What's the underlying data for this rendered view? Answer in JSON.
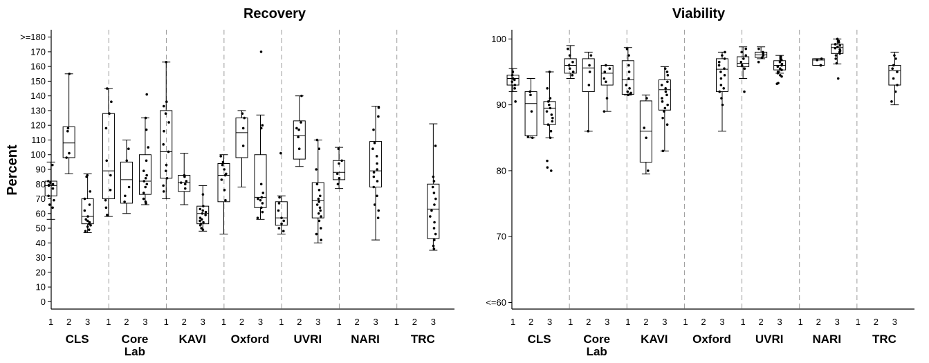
{
  "chart_data": [
    {
      "type": "box",
      "title": "Recovery",
      "ylabel": "Percent",
      "y_ticks": [
        ">=180",
        "170",
        "160",
        "150",
        "140",
        "130",
        "120",
        "110",
        "100",
        "90",
        "80",
        "70",
        "60",
        "50",
        "40",
        "30",
        "20",
        "10",
        "0"
      ],
      "y_tick_values": [
        180,
        170,
        160,
        150,
        140,
        130,
        120,
        110,
        100,
        90,
        80,
        70,
        60,
        50,
        40,
        30,
        20,
        10,
        0
      ],
      "ylim": [
        -5,
        185
      ],
      "x_subcategories": [
        "1",
        "2",
        "3"
      ],
      "groups": [
        {
          "name_lines": [
            "CLS"
          ],
          "boxes": [
            {
              "sub": "1",
              "min": 56,
              "q1": 72,
              "median": 79,
              "q3": 82,
              "max": 95,
              "points": [
                93,
                82,
                81,
                80,
                79,
                77,
                72,
                69,
                66,
                64
              ]
            },
            {
              "sub": "2",
              "min": 87,
              "q1": 98,
              "median": 108,
              "q3": 119,
              "max": 155,
              "points": [
                155,
                118,
                116,
                101,
                98
              ]
            },
            {
              "sub": "3",
              "min": 47,
              "q1": 53,
              "median": 58,
              "q3": 70,
              "max": 87,
              "points": [
                86,
                85,
                75,
                70,
                66,
                62,
                58,
                56,
                55,
                54,
                53,
                52,
                51,
                49,
                48
              ]
            }
          ]
        },
        {
          "name_lines": [
            "Core",
            "Lab"
          ],
          "boxes": [
            {
              "sub": "1",
              "min": 58,
              "q1": 70,
              "median": 89,
              "q3": 128,
              "max": 145,
              "points": [
                145,
                136,
                128,
                118,
                96,
                86,
                76,
                69,
                64,
                59
              ]
            },
            {
              "sub": "2",
              "min": 60,
              "q1": 67,
              "median": 83,
              "q3": 95,
              "max": 110,
              "points": [
                104,
                96,
                78,
                72,
                68
              ]
            },
            {
              "sub": "3",
              "min": 66,
              "q1": 73,
              "median": 82,
              "q3": 100,
              "max": 125,
              "points": [
                141,
                125,
                117,
                105,
                96,
                89,
                86,
                84,
                82,
                80,
                78,
                74,
                70,
                68,
                67
              ]
            }
          ]
        },
        {
          "name_lines": [
            "KAVI"
          ],
          "boxes": [
            {
              "sub": "1",
              "min": 70,
              "q1": 84,
              "median": 102,
              "q3": 130,
              "max": 163,
              "points": [
                163,
                136,
                133,
                128,
                122,
                116,
                107,
                102,
                93,
                89,
                84,
                79,
                75
              ]
            },
            {
              "sub": "2",
              "min": 66,
              "q1": 75,
              "median": 81,
              "q3": 86,
              "max": 101,
              "points": [
                86,
                85,
                82,
                81,
                80,
                77
              ]
            },
            {
              "sub": "3",
              "min": 48,
              "q1": 53,
              "median": 60,
              "q3": 65,
              "max": 79,
              "points": [
                73,
                65,
                63,
                62,
                61,
                60,
                59,
                57,
                56,
                55,
                54,
                53,
                52,
                50,
                49
              ]
            }
          ]
        },
        {
          "name_lines": [
            "Oxford"
          ],
          "boxes": [
            {
              "sub": "1",
              "min": 46,
              "q1": 68,
              "median": 86,
              "q3": 94,
              "max": 100,
              "points": [
                99,
                95,
                93,
                90,
                87,
                86,
                83,
                76,
                69
              ]
            },
            {
              "sub": "2",
              "min": 78,
              "q1": 98,
              "median": 115,
              "q3": 125,
              "max": 130,
              "points": [
                128,
                125,
                118,
                106
              ]
            },
            {
              "sub": "3",
              "min": 56,
              "q1": 64,
              "median": 71,
              "q3": 100,
              "max": 127,
              "points": [
                170,
                120,
                118,
                80,
                74,
                71,
                70,
                69,
                67,
                64,
                61,
                57
              ]
            }
          ]
        },
        {
          "name_lines": [
            "UVRI"
          ],
          "boxes": [
            {
              "sub": "1",
              "min": 46,
              "q1": 52,
              "median": 57,
              "q3": 68,
              "max": 72,
              "points": [
                101,
                71,
                67,
                62,
                57,
                55,
                53,
                50,
                48
              ]
            },
            {
              "sub": "2",
              "min": 92,
              "q1": 97,
              "median": 113,
              "q3": 123,
              "max": 140,
              "points": [
                140,
                122,
                118,
                117,
                112,
                104
              ]
            },
            {
              "sub": "3",
              "min": 40,
              "q1": 57,
              "median": 69,
              "q3": 81,
              "max": 110,
              "points": [
                110,
                104,
                90,
                80,
                76,
                72,
                70,
                68,
                66,
                64,
                62,
                60,
                58,
                55,
                50,
                46,
                42
              ]
            }
          ]
        },
        {
          "name_lines": [
            "NARI"
          ],
          "boxes": [
            {
              "sub": "1",
              "min": 77,
              "q1": 83,
              "median": 88,
              "q3": 96,
              "max": 105,
              "points": [
                104,
                96,
                94,
                87,
                84,
                80
              ]
            },
            {
              "sub": "2",
              "min": null,
              "q1": null,
              "median": null,
              "q3": null,
              "max": null,
              "points": []
            },
            {
              "sub": "3",
              "min": 42,
              "q1": 78,
              "median": 89,
              "q3": 109,
              "max": 133,
              "points": [
                132,
                126,
                117,
                108,
                104,
                99,
                94,
                90,
                88,
                85,
                82,
                78,
                72,
                66,
                62,
                57
              ]
            }
          ]
        },
        {
          "name_lines": [
            "TRC"
          ],
          "boxes": [
            {
              "sub": "1",
              "min": null,
              "q1": null,
              "median": null,
              "q3": null,
              "max": null,
              "points": []
            },
            {
              "sub": "2",
              "min": null,
              "q1": null,
              "median": null,
              "q3": null,
              "max": null,
              "points": []
            },
            {
              "sub": "3",
              "min": 35,
              "q1": 43,
              "median": 63,
              "q3": 80,
              "max": 121,
              "points": [
                106,
                85,
                82,
                78,
                74,
                70,
                66,
                62,
                58,
                54,
                50,
                46,
                42,
                38,
                36
              ]
            }
          ]
        }
      ]
    },
    {
      "type": "box",
      "title": "Viability",
      "ylabel": "",
      "y_ticks": [
        "100",
        "90",
        "80",
        "70",
        "<=60"
      ],
      "y_tick_values": [
        100,
        90,
        80,
        70,
        60
      ],
      "ylim": [
        59,
        101.4
      ],
      "x_subcategories": [
        "1",
        "2",
        "3"
      ],
      "groups": [
        {
          "name_lines": [
            "CLS"
          ],
          "boxes": [
            {
              "sub": "1",
              "min": 92,
              "q1": 93,
              "median": 94,
              "q3": 94.5,
              "max": 95.5,
              "points": [
                95,
                94.5,
                94,
                93.8,
                93.5,
                93,
                92.5,
                90.5
              ]
            },
            {
              "sub": "2",
              "min": 85,
              "q1": 85.3,
              "median": 90.2,
              "q3": 92,
              "max": 94,
              "points": [
                92,
                91.5,
                89,
                85.2,
                85
              ]
            },
            {
              "sub": "3",
              "min": 85,
              "q1": 87,
              "median": 89.5,
              "q3": 90.5,
              "max": 95,
              "points": [
                95,
                92.5,
                91,
                90.5,
                90,
                89.5,
                89,
                88.5,
                88,
                87.5,
                87,
                86,
                85,
                81.5,
                80.5,
                80
              ]
            }
          ]
        },
        {
          "name_lines": [
            "Core",
            "Lab"
          ],
          "boxes": [
            {
              "sub": "1",
              "min": 94,
              "q1": 94.8,
              "median": 96,
              "q3": 97,
              "max": 99,
              "points": [
                98.5,
                97.5,
                96.5,
                96,
                95.5,
                95,
                94.5
              ]
            },
            {
              "sub": "2",
              "min": 86,
              "q1": 92,
              "median": 95.6,
              "q3": 97,
              "max": 98,
              "points": [
                97.5,
                96,
                95,
                93,
                86
              ]
            },
            {
              "sub": "3",
              "min": 89,
              "q1": 93,
              "median": 94.8,
              "q3": 96,
              "max": 96,
              "points": [
                96,
                95.5,
                95,
                94,
                93.5,
                91,
                89
              ]
            }
          ]
        },
        {
          "name_lines": [
            "KAVI"
          ],
          "boxes": [
            {
              "sub": "1",
              "min": 91.5,
              "q1": 91.6,
              "median": 93.8,
              "q3": 96.7,
              "max": 98.7,
              "points": [
                98.5,
                97.5,
                96,
                95,
                94,
                93,
                92.5,
                92,
                91.8,
                91.6,
                91.5
              ]
            },
            {
              "sub": "2",
              "min": 79.5,
              "q1": 81.3,
              "median": 86,
              "q3": 90.6,
              "max": 91.5,
              "points": [
                91,
                86.5,
                85,
                80
              ]
            },
            {
              "sub": "3",
              "min": 83,
              "q1": 89.2,
              "median": 92.3,
              "q3": 93.8,
              "max": 95.8,
              "points": [
                95.5,
                95,
                94.5,
                93.5,
                93,
                92.5,
                92,
                91.5,
                91,
                90.5,
                90,
                89.5,
                89,
                88,
                87,
                83
              ]
            }
          ]
        },
        {
          "name_lines": [
            "Oxford"
          ],
          "boxes": [
            {
              "sub": "1",
              "min": null,
              "q1": null,
              "median": null,
              "q3": null,
              "max": null,
              "points": []
            },
            {
              "sub": "2",
              "min": null,
              "q1": null,
              "median": null,
              "q3": null,
              "max": null,
              "points": []
            },
            {
              "sub": "3",
              "min": 86,
              "q1": 92,
              "median": 95.4,
              "q3": 97,
              "max": 98,
              "points": [
                98,
                97.5,
                97,
                96.5,
                96,
                95.5,
                95,
                94.5,
                94,
                93,
                92.5,
                92,
                91,
                90
              ]
            }
          ]
        },
        {
          "name_lines": [
            "UVRI"
          ],
          "boxes": [
            {
              "sub": "1",
              "min": 94,
              "q1": 95.8,
              "median": 96.3,
              "q3": 97.3,
              "max": 98.8,
              "points": [
                98.5,
                98,
                97.5,
                97,
                96.5,
                96,
                95.5,
                92
              ]
            },
            {
              "sub": "2",
              "min": 97,
              "q1": 97.2,
              "median": 97.6,
              "q3": 98,
              "max": 98.8,
              "points": [
                98.5,
                98,
                97.8,
                97.5,
                97.2,
                96.5
              ]
            },
            {
              "sub": "3",
              "min": 94.8,
              "q1": 95.3,
              "median": 96,
              "q3": 96.7,
              "max": 97.5,
              "points": [
                97.3,
                97,
                96.8,
                96.5,
                96.2,
                96,
                95.8,
                95.5,
                95.3,
                95,
                94.8,
                94.5,
                94.3,
                93.3,
                93.2
              ]
            }
          ]
        },
        {
          "name_lines": [
            "NARI"
          ],
          "boxes": [
            {
              "sub": "1",
              "min": null,
              "q1": null,
              "median": null,
              "q3": null,
              "max": null,
              "points": []
            },
            {
              "sub": "2",
              "min": 96,
              "q1": 96,
              "median": 96.8,
              "q3": 97,
              "max": 97,
              "points": [
                97,
                96.8,
                96,
                96
              ]
            },
            {
              "sub": "3",
              "min": 96.2,
              "q1": 97.8,
              "median": 98.7,
              "q3": 99.2,
              "max": 100,
              "points": [
                100,
                99.7,
                99.5,
                99.2,
                99,
                98.8,
                98.6,
                98.4,
                98.2,
                98,
                97.8,
                97.5,
                97,
                96.3,
                94
              ]
            }
          ]
        },
        {
          "name_lines": [
            "TRC"
          ],
          "boxes": [
            {
              "sub": "1",
              "min": null,
              "q1": null,
              "median": null,
              "q3": null,
              "max": null,
              "points": []
            },
            {
              "sub": "2",
              "min": null,
              "q1": null,
              "median": null,
              "q3": null,
              "max": null,
              "points": []
            },
            {
              "sub": "3",
              "min": 90,
              "q1": 93,
              "median": 95.2,
              "q3": 96,
              "max": 98,
              "points": [
                97.5,
                97,
                96,
                95.5,
                95,
                94,
                93,
                92,
                90.5
              ]
            }
          ]
        }
      ]
    }
  ]
}
